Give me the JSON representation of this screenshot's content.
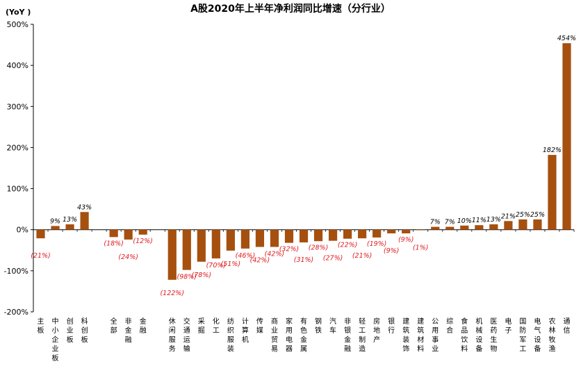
{
  "chart_data": {
    "type": "bar",
    "title": "A股2020年上半年净利润同比增速（分行业）",
    "ylabel": "(YoY )",
    "ylim": [
      -200,
      500
    ],
    "yticks": [
      "500%",
      "400%",
      "300%",
      "200%",
      "100%",
      "0%",
      "-100%",
      "-200%"
    ],
    "grid": false,
    "legend": "none",
    "bar_color": "#a6500f",
    "negative_label_color": "#e0191e",
    "positive_label_color": "#000000",
    "categories": [
      "主板",
      "中小企业板",
      "创业板",
      "科创板",
      "",
      "全部",
      "非金融",
      "金融",
      "",
      "休闲服务",
      "交通运输",
      "采掘",
      "化工",
      "纺织服装",
      "计算机",
      "传媒",
      "商业贸易",
      "家用电器",
      "有色金属",
      "钢铁",
      "汽车",
      "非银金融",
      "轻工制造",
      "房地产",
      "银行",
      "建筑装饰",
      "建筑材料",
      "公用事业",
      "综合",
      "食品饮料",
      "机械设备",
      "医药生物",
      "电子",
      "国防军工",
      "电气设备",
      "农林牧渔",
      "通信"
    ],
    "values": [
      -21,
      9,
      13,
      43,
      null,
      -18,
      -24,
      -12,
      null,
      -122,
      -98,
      -78,
      -70,
      -51,
      -46,
      -42,
      -42,
      -32,
      -31,
      -28,
      -27,
      -22,
      -21,
      -19,
      -9,
      -9,
      -1,
      7,
      7,
      10,
      11,
      13,
      21,
      25,
      25,
      182,
      454
    ],
    "data_labels": [
      "(21%)",
      "9%",
      "13%",
      "43%",
      "",
      "(18%)",
      "(24%)",
      "(12%)",
      "",
      "(122%)",
      "(98%)",
      "(78%)",
      "(70%)",
      "(51%)",
      "(46%)",
      "(42%)",
      "(42%)",
      "(32%)",
      "(31%)",
      "(28%)",
      "(27%)",
      "(22%)",
      "(21%)",
      "(19%)",
      "(9%)",
      "(9%)",
      "(1%)",
      "7%",
      "7%",
      "10%",
      "11%",
      "13%",
      "21%",
      "25%",
      "25%",
      "182%",
      "454%"
    ]
  }
}
